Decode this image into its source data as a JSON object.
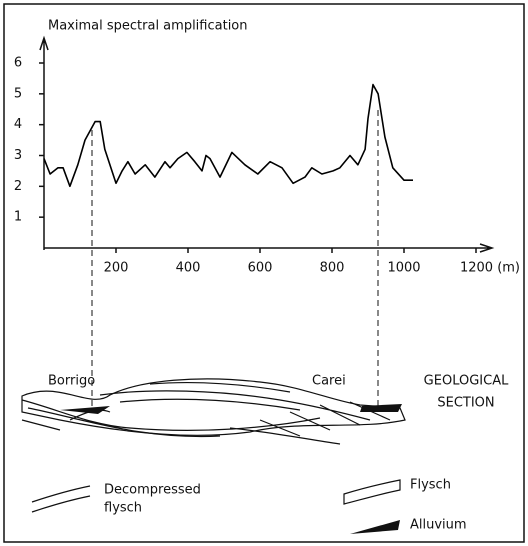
{
  "chart_data": {
    "type": "line",
    "title": "Maximal spectral amplification",
    "x": [
      0,
      17,
      39,
      53,
      72,
      94,
      114,
      142,
      156,
      169,
      200,
      217,
      233,
      253,
      281,
      308,
      336,
      350,
      372,
      397,
      419,
      439,
      450,
      461,
      489,
      522,
      558,
      594,
      628,
      661,
      692,
      725,
      744,
      772,
      803,
      822,
      850,
      872,
      892,
      900,
      914,
      928,
      947,
      969,
      1000,
      1025
    ],
    "values": [
      2.9,
      2.4,
      2.6,
      2.6,
      2.0,
      2.7,
      3.5,
      4.1,
      4.1,
      3.2,
      2.1,
      2.5,
      2.8,
      2.4,
      2.7,
      2.3,
      2.8,
      2.6,
      2.9,
      3.1,
      2.8,
      2.5,
      3.0,
      2.9,
      2.3,
      3.1,
      2.7,
      2.4,
      2.8,
      2.6,
      2.1,
      2.3,
      2.6,
      2.4,
      2.5,
      2.6,
      3.0,
      2.7,
      3.2,
      4.2,
      5.3,
      5.0,
      3.6,
      2.6,
      2.2,
      2.2
    ],
    "color": "#000000",
    "xlim": [
      0,
      1200
    ],
    "xticks": [
      200,
      400,
      600,
      800,
      1000,
      {
        "value": 1200,
        "label": "1200 (m)"
      }
    ],
    "ylim": [
      0,
      6
    ],
    "yticks": [
      1,
      2,
      3,
      4,
      5,
      6
    ],
    "grid": false
  },
  "section": {
    "title": [
      "GEOLOGICAL",
      "SECTION"
    ],
    "left_site": "Borrigo",
    "right_site": "Carei"
  },
  "legend": {
    "decompressed": [
      "Decompressed",
      "flysch"
    ],
    "flysch": "Flysch",
    "alluvium": "Alluvium"
  }
}
